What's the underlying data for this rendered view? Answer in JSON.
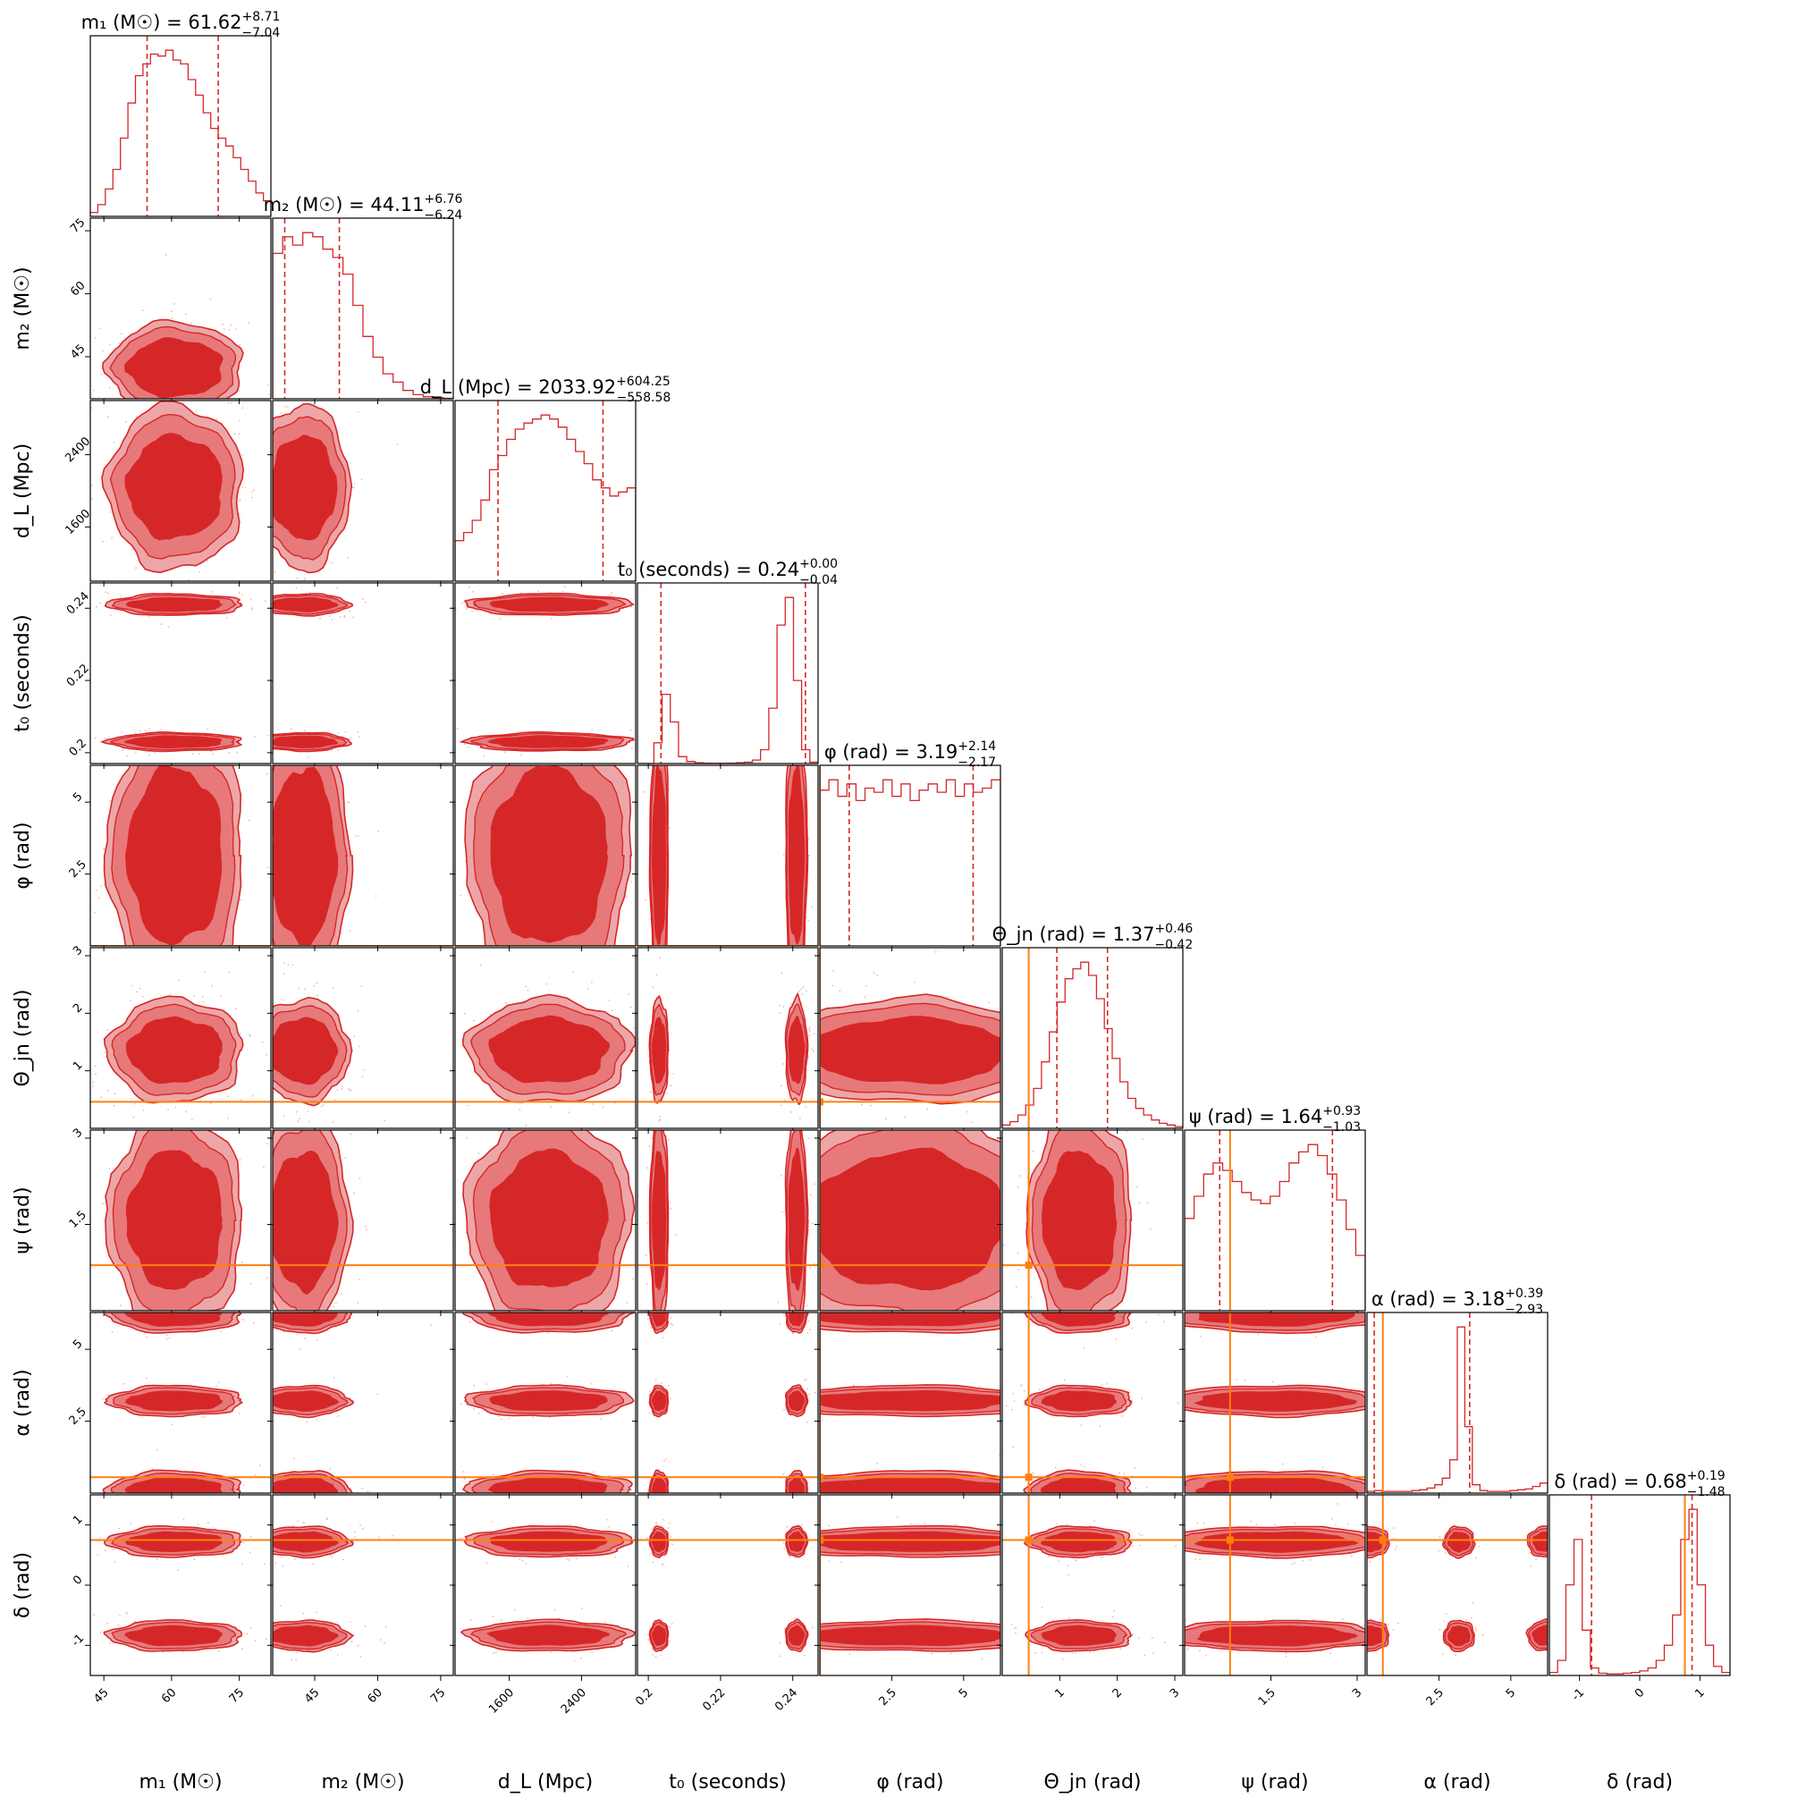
{
  "chart_data": {
    "type": "corner",
    "title": "",
    "params": [
      {
        "label": "m₁ (M☉)",
        "title_value": "61.62",
        "plus": "8.71",
        "minus": "7.04",
        "range": [
          42,
          82
        ],
        "ticks": [
          45,
          60,
          75
        ],
        "median": 61.62,
        "lo": 54.58,
        "hi": 70.33,
        "truth": null
      },
      {
        "label": "m₂ (M☉)",
        "title_value": "44.11",
        "plus": "6.76",
        "minus": "6.24",
        "range": [
          35,
          78
        ],
        "ticks": [
          45,
          60,
          75
        ],
        "median": 44.11,
        "lo": 37.87,
        "hi": 50.87,
        "truth": null
      },
      {
        "label": "d_L (Mpc)",
        "title_value": "2033.92",
        "plus": "604.25",
        "minus": "558.58",
        "range": [
          1000,
          3000
        ],
        "ticks": [
          1600,
          2400
        ],
        "median": 2033.92,
        "lo": 1475.34,
        "hi": 2638.17,
        "truth": null
      },
      {
        "label": "t₀ (seconds)",
        "title_value": "0.24",
        "plus": "0.00",
        "minus": "0.04",
        "range": [
          0.197,
          0.247
        ],
        "ticks": [
          0.2,
          0.22,
          0.24
        ],
        "median": 0.24,
        "lo": 0.2035,
        "hi": 0.2435,
        "truth": null
      },
      {
        "label": "φ (rad)",
        "title_value": "3.19",
        "plus": "2.14",
        "minus": "2.17",
        "range": [
          0,
          6.28
        ],
        "ticks": [
          2.5,
          5.0
        ],
        "median": 3.19,
        "lo": 1.02,
        "hi": 5.33,
        "truth": 0.0
      },
      {
        "label": "Θ_jn (rad)",
        "title_value": "1.37",
        "plus": "0.46",
        "minus": "0.42",
        "range": [
          0,
          3.14
        ],
        "ticks": [
          1,
          2,
          3
        ],
        "median": 1.37,
        "lo": 0.95,
        "hi": 1.83,
        "truth": 0.46
      },
      {
        "label": "ψ (rad)",
        "title_value": "1.64",
        "plus": "0.93",
        "minus": "1.03",
        "range": [
          0,
          3.14
        ],
        "ticks": [
          1.5,
          3.0
        ],
        "median": 1.64,
        "lo": 0.61,
        "hi": 2.57,
        "truth": 0.79
      },
      {
        "label": "α (rad)",
        "title_value": "3.18",
        "plus": "0.39",
        "minus": "2.93",
        "range": [
          0,
          6.28
        ],
        "ticks": [
          2.5,
          5.0
        ],
        "median": 3.18,
        "lo": 0.25,
        "hi": 3.57,
        "truth": 0.55
      },
      {
        "label": "δ (rad)",
        "title_value": "0.68",
        "plus": "0.19",
        "minus": "1.48",
        "range": [
          -1.5,
          1.5
        ],
        "ticks": [
          -1,
          0,
          1
        ],
        "median": 0.68,
        "lo": -0.8,
        "hi": 0.87,
        "truth": 0.75
      }
    ],
    "colors": {
      "posterior": "#d62728",
      "fill_outer": "#eda6a7",
      "fill_inner": "#d62728",
      "truth": "#ff7f0e"
    },
    "histograms": {
      "m1": [
        2,
        6,
        14,
        24,
        40,
        58,
        72,
        78,
        83,
        82,
        85,
        80,
        78,
        70,
        62,
        53,
        45,
        40,
        36,
        30,
        24,
        18,
        12,
        8
      ],
      "m2": [
        70,
        78,
        74,
        80,
        78,
        72,
        68,
        60,
        45,
        30,
        20,
        12,
        8,
        4,
        2,
        1,
        0.5,
        0.2
      ],
      "dL": [
        20,
        24,
        30,
        40,
        55,
        62,
        70,
        75,
        78,
        80,
        82,
        80,
        76,
        70,
        64,
        58,
        50,
        46,
        42,
        44,
        46
      ],
      "t0": [
        0,
        0,
        30,
        100,
        60,
        10,
        3,
        1,
        0.5,
        0.3,
        0.3,
        0.5,
        1,
        2,
        5,
        20,
        80,
        200,
        240,
        120,
        20,
        2
      ],
      "phi": [
        75,
        80,
        72,
        78,
        70,
        76,
        74,
        80,
        72,
        78,
        70,
        75,
        78,
        74,
        80,
        72,
        78,
        74,
        76,
        80
      ],
      "theta": [
        2,
        4,
        8,
        14,
        24,
        40,
        58,
        76,
        90,
        96,
        100,
        92,
        78,
        60,
        42,
        28,
        18,
        12,
        8,
        5,
        3,
        2,
        1
      ],
      "psi": [
        50,
        62,
        74,
        80,
        76,
        70,
        64,
        60,
        58,
        62,
        70,
        80,
        86,
        90,
        84,
        74,
        60,
        44,
        30
      ],
      "alpha": [
        2,
        3,
        2,
        2,
        2,
        2,
        3,
        4,
        6,
        10,
        18,
        40,
        200,
        80,
        10,
        3,
        2,
        2,
        2,
        3,
        4,
        5,
        8,
        12
      ],
      "delta": [
        4,
        20,
        120,
        180,
        60,
        10,
        3,
        2,
        2,
        3,
        4,
        6,
        10,
        20,
        40,
        80,
        180,
        220,
        120,
        40,
        12,
        4
      ]
    }
  }
}
